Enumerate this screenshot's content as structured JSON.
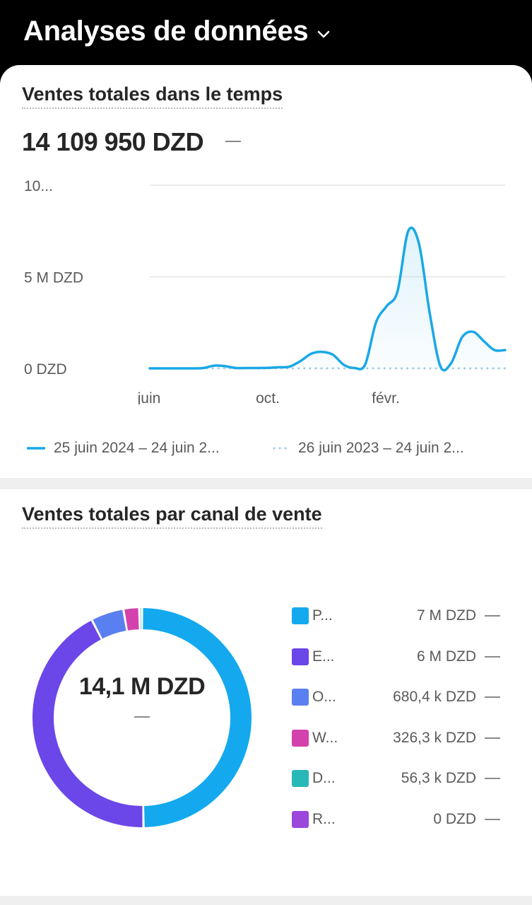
{
  "header": {
    "title": "Analyses de données"
  },
  "sales_over_time": {
    "title": "Ventes totales dans le temps",
    "total": "14 109 950 DZD",
    "legend": {
      "current": "25 juin 2024 – 24 juin 2...",
      "previous": "26 juin 2023 – 24 juin 2..."
    },
    "colors": {
      "current": "#1aa8e6",
      "previous": "#9ccbe8"
    }
  },
  "chart_data": {
    "type": "line",
    "ylabels": [
      "10...",
      "5 M DZD",
      "0 DZD"
    ],
    "xlabels": [
      "juin",
      "oct.",
      "févr."
    ],
    "ylim": [
      0,
      10000000
    ],
    "grid": true,
    "legend_position": "bottom",
    "series": [
      {
        "values": [
          0,
          0,
          0,
          0,
          0,
          20000,
          150000,
          120000,
          20000,
          20000,
          20000,
          30000,
          60000,
          100000,
          400000,
          800000,
          900000,
          750000,
          200000,
          20000,
          200000,
          2500000,
          3400000,
          4200000,
          7500000,
          6800000,
          3000000,
          100000,
          300000,
          1700000,
          2000000,
          1500000,
          1000000,
          1000000
        ]
      },
      {
        "values": [
          0,
          0,
          0,
          0,
          0,
          0,
          0,
          0,
          0,
          0,
          0,
          0,
          0,
          0,
          0,
          0,
          0,
          0,
          0,
          0,
          0,
          0,
          0,
          0,
          0,
          0,
          0,
          0,
          0,
          0,
          0,
          0,
          0,
          0
        ]
      }
    ]
  },
  "sales_by_channel": {
    "title": "Ventes totales par canal de vente",
    "center_value": "14,1 M DZD",
    "channels": [
      {
        "name": "P...",
        "value_label": "7 M DZD",
        "value": 7000000,
        "color": "#14a9ef"
      },
      {
        "name": "E...",
        "value_label": "6 M DZD",
        "value": 6000000,
        "color": "#6b46e8"
      },
      {
        "name": "O...",
        "value_label": "680,4 k DZD",
        "value": 680400,
        "color": "#5a7ff0"
      },
      {
        "name": "W...",
        "value_label": "326,3 k DZD",
        "value": 326300,
        "color": "#d341ad"
      },
      {
        "name": "D...",
        "value_label": "56,3 k DZD",
        "value": 56300,
        "color": "#27b8b8"
      },
      {
        "name": "R...",
        "value_label": "0 DZD",
        "value": 0,
        "color": "#9b47db"
      }
    ]
  }
}
